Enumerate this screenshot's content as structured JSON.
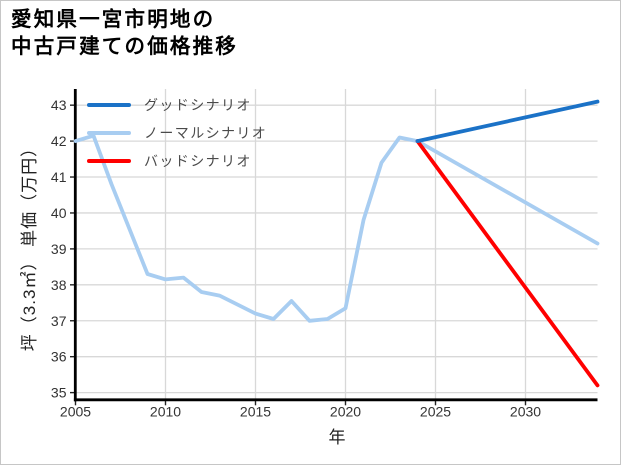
{
  "header": {
    "title_line1": "愛知県一宮市明地の",
    "title_line2": "中古戸建ての価格推移"
  },
  "chart_data": {
    "type": "line",
    "title": "愛知県一宮市明地の中古戸建ての価格推移",
    "xlabel": "年",
    "ylabel": "坪（3.3㎡） 単価（万円）",
    "xlim": [
      2005,
      2034
    ],
    "ylim": [
      34.8,
      43.45
    ],
    "x_ticks": [
      2005,
      2010,
      2015,
      2020,
      2025,
      2030
    ],
    "y_ticks": [
      35,
      36,
      37,
      38,
      39,
      40,
      41,
      42,
      43
    ],
    "grid": true,
    "legend": {
      "position": "upper-left",
      "frame": false
    },
    "colors": {
      "grid": "#d8d8d8",
      "spine": "#000000",
      "tick_label": "#333333",
      "legend_text": "#4a4a4a",
      "background": "#ffffff"
    },
    "series": [
      {
        "name": "グッドシナリオ",
        "color": "#1b72c7",
        "x": [
          2024,
          2034
        ],
        "y": [
          42.0,
          43.1
        ]
      },
      {
        "name": "ノーマルシナリオ",
        "color": "#a8cdf1",
        "x": [
          2005,
          2006,
          2007,
          2008,
          2009,
          2010,
          2011,
          2012,
          2013,
          2014,
          2015,
          2016,
          2017,
          2018,
          2019,
          2020,
          2021,
          2022,
          2023,
          2024,
          2034
        ],
        "y": [
          42.0,
          42.15,
          40.8,
          39.55,
          38.3,
          38.15,
          38.2,
          37.8,
          37.7,
          37.45,
          37.2,
          37.05,
          37.55,
          37.0,
          37.05,
          37.35,
          39.8,
          41.4,
          42.1,
          42.0,
          39.15
        ]
      },
      {
        "name": "バッドシナリオ",
        "color": "#ff0000",
        "x": [
          2024,
          2034
        ],
        "y": [
          42.0,
          35.2
        ]
      }
    ],
    "draw_order": [
      1,
      2,
      0
    ]
  }
}
